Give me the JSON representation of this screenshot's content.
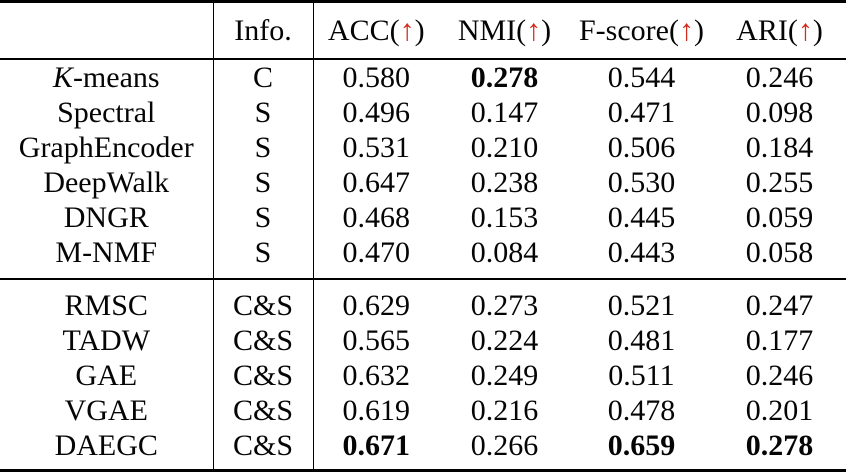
{
  "table": {
    "arrow_glyph": "↑",
    "arrow_color": "#d42a1e",
    "text_color": "#050505",
    "columns": [
      {
        "label": "",
        "arrow": false
      },
      {
        "label": "Info.",
        "arrow": false
      },
      {
        "label": "ACC",
        "arrow": true
      },
      {
        "label": "NMI",
        "arrow": true
      },
      {
        "label": "F-score",
        "arrow": true
      },
      {
        "label": "ARI",
        "arrow": true
      }
    ],
    "groups": [
      {
        "rows": [
          {
            "method": "K-means",
            "italic_first": true,
            "info": "C",
            "values": [
              "0.580",
              "0.278",
              "0.544",
              "0.246"
            ],
            "bold": [
              false,
              true,
              false,
              false
            ]
          },
          {
            "method": "Spectral",
            "italic_first": false,
            "info": "S",
            "values": [
              "0.496",
              "0.147",
              "0.471",
              "0.098"
            ],
            "bold": [
              false,
              false,
              false,
              false
            ]
          },
          {
            "method": "GraphEncoder",
            "italic_first": false,
            "info": "S",
            "values": [
              "0.531",
              "0.210",
              "0.506",
              "0.184"
            ],
            "bold": [
              false,
              false,
              false,
              false
            ]
          },
          {
            "method": "DeepWalk",
            "italic_first": false,
            "info": "S",
            "values": [
              "0.647",
              "0.238",
              "0.530",
              "0.255"
            ],
            "bold": [
              false,
              false,
              false,
              false
            ]
          },
          {
            "method": "DNGR",
            "italic_first": false,
            "info": "S",
            "values": [
              "0.468",
              "0.153",
              "0.445",
              "0.059"
            ],
            "bold": [
              false,
              false,
              false,
              false
            ]
          },
          {
            "method": "M-NMF",
            "italic_first": false,
            "info": "S",
            "values": [
              "0.470",
              "0.084",
              "0.443",
              "0.058"
            ],
            "bold": [
              false,
              false,
              false,
              false
            ]
          }
        ]
      },
      {
        "rows": [
          {
            "method": "RMSC",
            "italic_first": false,
            "info": "C&S",
            "values": [
              "0.629",
              "0.273",
              "0.521",
              "0.247"
            ],
            "bold": [
              false,
              false,
              false,
              false
            ]
          },
          {
            "method": "TADW",
            "italic_first": false,
            "info": "C&S",
            "values": [
              "0.565",
              "0.224",
              "0.481",
              "0.177"
            ],
            "bold": [
              false,
              false,
              false,
              false
            ]
          },
          {
            "method": "GAE",
            "italic_first": false,
            "info": "C&S",
            "values": [
              "0.632",
              "0.249",
              "0.511",
              "0.246"
            ],
            "bold": [
              false,
              false,
              false,
              false
            ]
          },
          {
            "method": "VGAE",
            "italic_first": false,
            "info": "C&S",
            "values": [
              "0.619",
              "0.216",
              "0.478",
              "0.201"
            ],
            "bold": [
              false,
              false,
              false,
              false
            ]
          },
          {
            "method": "DAEGC",
            "italic_first": false,
            "info": "C&S",
            "values": [
              "0.671",
              "0.266",
              "0.659",
              "0.278"
            ],
            "bold": [
              true,
              false,
              true,
              true
            ]
          }
        ]
      }
    ]
  }
}
